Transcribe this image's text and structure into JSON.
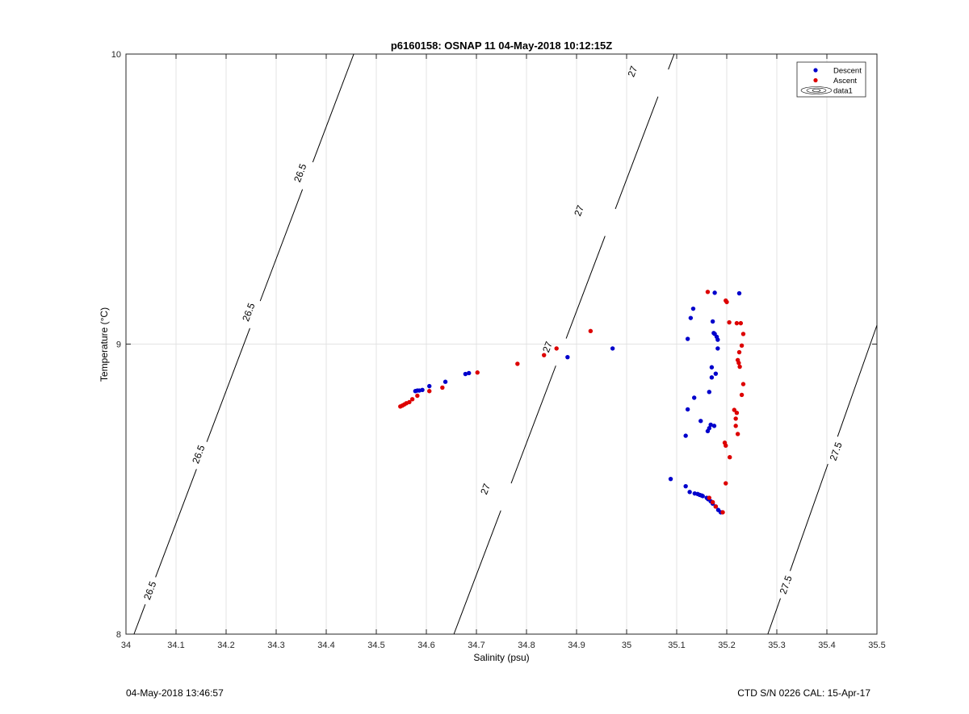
{
  "footer": {
    "left_text": "04-May-2018 13:46:57",
    "right_text": "CTD S/N 0226  CAL: 15-Apr-17"
  },
  "chart_data": {
    "type": "scatter",
    "title": "p6160158: OSNAP 11 04-May-2018 10:12:15Z",
    "xlabel": "Salinity (psu)",
    "ylabel": "Temperature (°C)",
    "xlim": [
      34,
      35.5
    ],
    "ylim": [
      8,
      10
    ],
    "xticks": [
      34,
      34.1,
      34.2,
      34.3,
      34.4,
      34.5,
      34.6,
      34.7,
      34.8,
      34.9,
      35,
      35.1,
      35.2,
      35.3,
      35.4,
      35.5
    ],
    "xtick_labels": [
      "34",
      "34.1",
      "34.2",
      "34.3",
      "34.4",
      "34.5",
      "34.6",
      "34.7",
      "34.8",
      "34.9",
      "35",
      "35.1",
      "35.2",
      "35.3",
      "35.4",
      "35.5"
    ],
    "yticks": [
      8,
      9,
      10
    ],
    "ytick_labels": [
      "8",
      "9",
      "10"
    ],
    "grid": true,
    "legend_position": "top-right",
    "contour_color": "#000000",
    "series": [
      {
        "name": "Descent",
        "color": "#0000cc",
        "x": [
          34.972,
          34.882,
          34.685,
          34.678,
          34.638,
          34.606,
          34.592,
          34.586,
          34.582,
          34.578,
          35.133,
          35.128,
          35.122,
          35.172,
          35.176,
          35.18,
          35.174,
          35.182,
          35.182,
          35.17,
          35.178,
          35.17,
          35.165,
          35.135,
          35.122,
          35.148,
          35.165,
          35.168,
          35.175,
          35.162,
          35.118,
          35.088,
          35.118,
          35.126,
          35.136,
          35.142,
          35.146,
          35.15,
          35.152,
          35.16,
          35.163,
          35.168,
          35.172,
          35.178,
          35.183,
          35.188,
          35.225,
          35.176
        ],
        "y": [
          8.985,
          8.955,
          8.9,
          8.897,
          8.87,
          8.855,
          8.842,
          8.84,
          8.84,
          8.838,
          9.122,
          9.09,
          9.018,
          9.078,
          9.035,
          9.025,
          9.038,
          9.015,
          8.985,
          8.92,
          8.898,
          8.885,
          8.835,
          8.815,
          8.775,
          8.735,
          8.71,
          8.722,
          8.718,
          8.7,
          8.684,
          8.535,
          8.51,
          8.49,
          8.485,
          8.483,
          8.48,
          8.478,
          8.476,
          8.47,
          8.465,
          8.458,
          8.45,
          8.44,
          8.428,
          8.42,
          9.175,
          9.177
        ]
      },
      {
        "name": "Ascent",
        "color": "#dd0000",
        "x": [
          34.548,
          34.552,
          34.556,
          34.56,
          34.566,
          34.572,
          34.582,
          34.606,
          34.632,
          34.702,
          34.782,
          34.835,
          34.86,
          34.928,
          35.162,
          35.198,
          35.2,
          35.205,
          35.22,
          35.228,
          35.233,
          35.23,
          35.225,
          35.222,
          35.224,
          35.226,
          35.233,
          35.23,
          35.215,
          35.22,
          35.218,
          35.218,
          35.222,
          35.196,
          35.198,
          35.206,
          35.198,
          35.165,
          35.172,
          35.178,
          35.192
        ],
        "y": [
          8.785,
          8.788,
          8.792,
          8.796,
          8.8,
          8.81,
          8.822,
          8.838,
          8.85,
          8.902,
          8.932,
          8.962,
          8.985,
          9.045,
          9.18,
          9.15,
          9.145,
          9.075,
          9.072,
          9.072,
          9.035,
          8.995,
          8.972,
          8.945,
          8.935,
          8.922,
          8.862,
          8.825,
          8.773,
          8.763,
          8.743,
          8.718,
          8.69,
          8.66,
          8.65,
          8.61,
          8.52,
          8.47,
          8.455,
          8.44,
          8.42
        ]
      }
    ],
    "legend_extra": "data1",
    "contours": [
      {
        "value": 26.5,
        "label": "26.5",
        "line": [
          [
            34.016,
            8.0
          ],
          [
            34.455,
            10.0
          ]
        ],
        "label_at": [
          34.048,
          8.15,
          34.145,
          8.62,
          34.245,
          9.11,
          34.348,
          9.59
        ]
      },
      {
        "value": 27,
        "label": "27",
        "line": [
          [
            34.655,
            8.0
          ],
          [
            35.095,
            10.0
          ]
        ],
        "label_at": [
          34.718,
          8.5,
          34.842,
          8.99,
          34.905,
          9.46,
          35.012,
          9.94
        ]
      },
      {
        "value": 27.5,
        "label": "27.5",
        "line": [
          [
            35.282,
            8.0
          ],
          [
            35.5,
            9.065
          ]
        ],
        "label_at": [
          35.318,
          8.17,
          35.418,
          8.63
        ]
      }
    ]
  }
}
